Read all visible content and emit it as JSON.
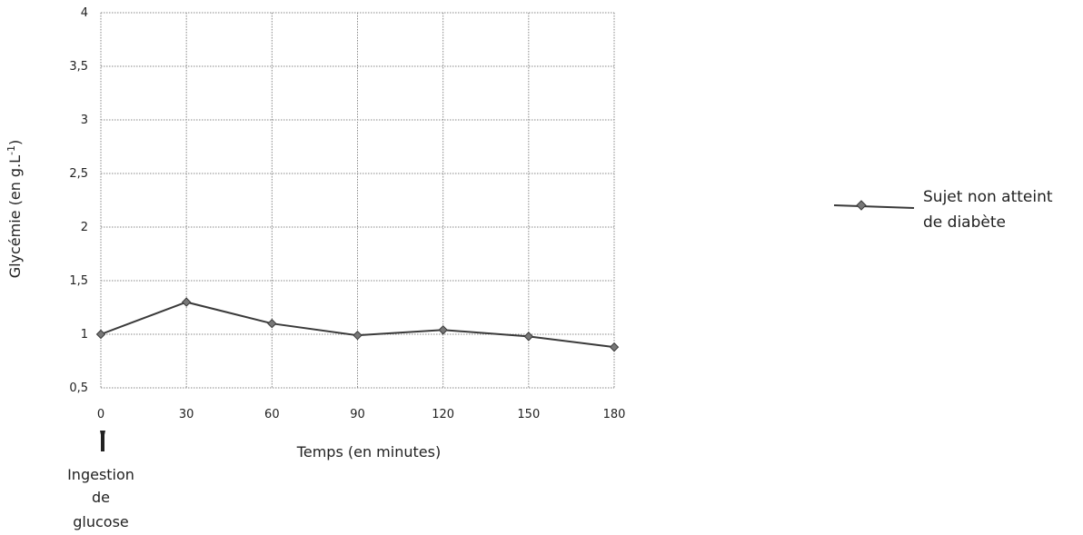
{
  "chart_data": {
    "type": "line",
    "x": [
      0,
      30,
      60,
      90,
      120,
      150,
      180
    ],
    "series": [
      {
        "name": "Sujet non atteint de diabète",
        "values": [
          1.0,
          1.3,
          1.1,
          0.99,
          1.04,
          0.98,
          0.88
        ]
      }
    ],
    "xticks": [
      "0",
      "30",
      "60",
      "90",
      "120",
      "150",
      "180"
    ],
    "yticks": [
      "0,5",
      "1",
      "1,5",
      "2",
      "2,5",
      "3",
      "3,5",
      "4"
    ],
    "ylim": [
      0.5,
      4
    ],
    "xlabel": "Temps (en minutes)",
    "ylabel_main": "Glycémie (en g.L",
    "ylabel_sup": "-1",
    "ylabel_end": ")",
    "grid": true,
    "legend_position": "right",
    "legend_lines": [
      "Sujet non atteint",
      "de diabète"
    ],
    "annotation": {
      "x": 0,
      "lines": [
        "Ingestion",
        "de",
        "glucose"
      ]
    },
    "colors": {
      "line": "#3a3a3a",
      "marker": "#777777",
      "grid": "#888888"
    }
  }
}
